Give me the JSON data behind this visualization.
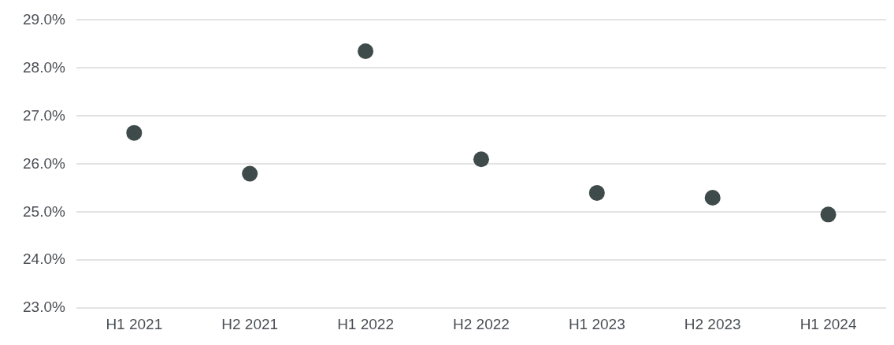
{
  "chart_data": {
    "type": "scatter",
    "categories": [
      "H1 2021",
      "H2 2021",
      "H1 2022",
      "H2 2022",
      "H1 2023",
      "H2 2023",
      "H1 2024"
    ],
    "series": [
      {
        "color": "#3f4a4a",
        "values": [
          26.65,
          25.8,
          28.35,
          26.1,
          25.4,
          25.3,
          24.95
        ]
      }
    ],
    "ylim": [
      23,
      29
    ],
    "yticks": [
      {
        "value": 23,
        "label": "23.0%"
      },
      {
        "value": 24,
        "label": "24.0%"
      },
      {
        "value": 25,
        "label": "25.0%"
      },
      {
        "value": 26,
        "label": "26.0%"
      },
      {
        "value": 27,
        "label": "27.0%"
      },
      {
        "value": 28,
        "label": "28.0%"
      },
      {
        "value": 29,
        "label": "29.0%"
      }
    ],
    "grid": "y",
    "legend": false,
    "marker": "circle"
  }
}
